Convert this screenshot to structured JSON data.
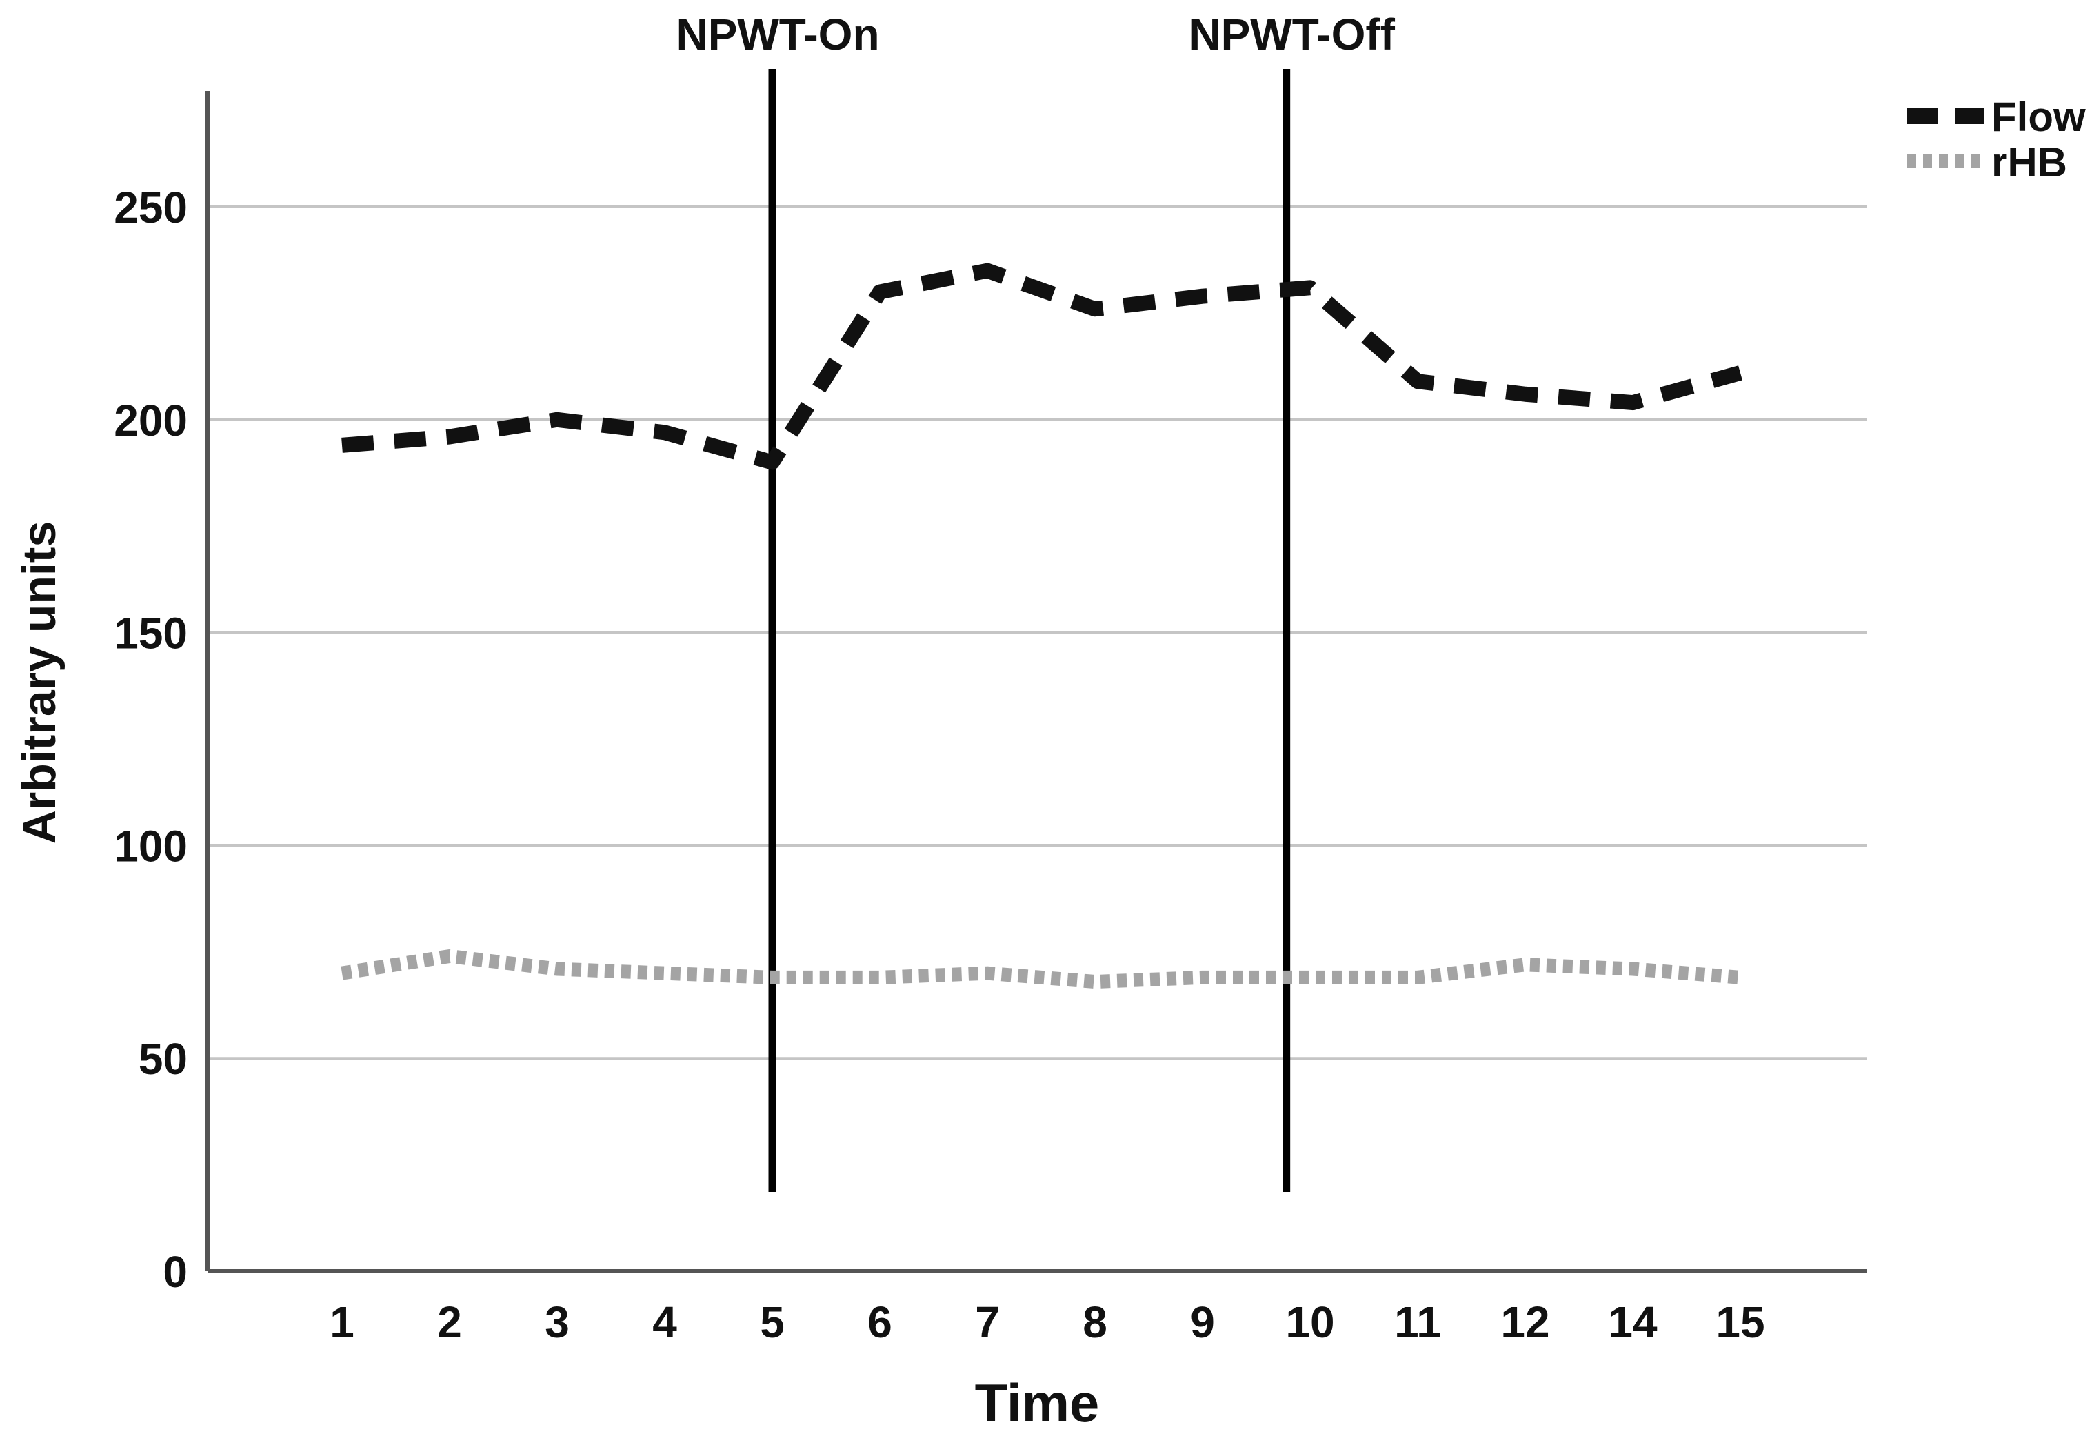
{
  "chart_data": {
    "type": "line",
    "title": "",
    "xlabel": "Time",
    "ylabel": "Arbitrary units",
    "categories": [
      "1",
      "2",
      "3",
      "4",
      "5",
      "6",
      "7",
      "8",
      "9",
      "10",
      "11",
      "12",
      "14",
      "15"
    ],
    "y_ticks": [
      0,
      50,
      100,
      150,
      200,
      250
    ],
    "ylim": [
      0,
      280
    ],
    "grid": "horizontal-only",
    "legend_position": "top-right",
    "series": [
      {
        "name": "Flow",
        "style": "dashed",
        "color": "#111111",
        "values": [
          194,
          196,
          200,
          197,
          190,
          230,
          235,
          226,
          229,
          231,
          209,
          206,
          204,
          211
        ]
      },
      {
        "name": "rHB",
        "style": "dotted",
        "color": "#a4a4a4",
        "values": [
          70,
          74,
          71,
          70,
          69,
          69,
          70,
          68,
          69,
          69,
          69,
          72,
          71,
          69
        ]
      }
    ],
    "ref_lines": [
      {
        "label": "NPWT-On",
        "x_index": 4,
        "at_category": "5"
      },
      {
        "label": "NPWT-Off",
        "x_index": 8.78,
        "at_category": "10"
      }
    ],
    "colors": {
      "flow_line": "#111111",
      "rhb_line": "#a4a4a4",
      "gridline": "#c5c5c5",
      "axis_line": "#555555",
      "ref_line": "#000000",
      "text": "#111111"
    }
  }
}
